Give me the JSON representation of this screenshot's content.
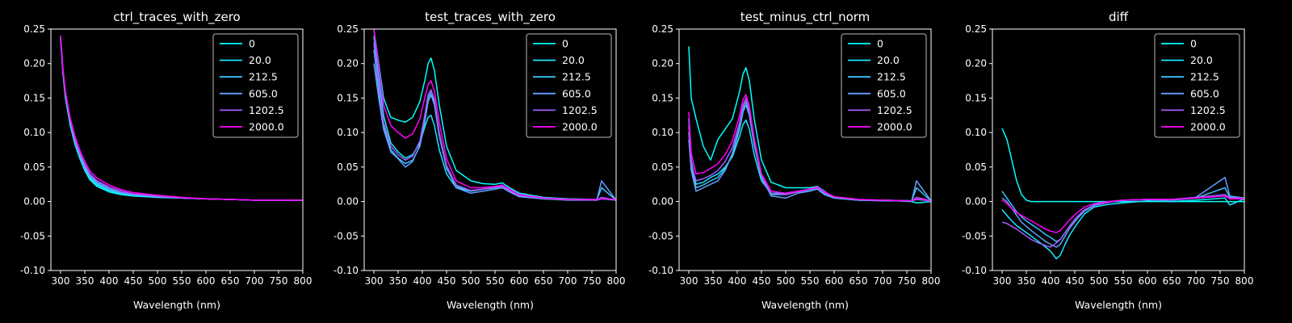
{
  "figure": {
    "background": "#000000",
    "foreground": "#ffffff"
  },
  "legend": {
    "entries": [
      "0",
      "20.0",
      "212.5",
      "605.0",
      "1202.5",
      "2000.0"
    ],
    "colors": [
      "#00ffff",
      "#17e8ff",
      "#3dc2ff",
      "#62a0ff",
      "#a35cff",
      "#ff00ff"
    ],
    "placement": "top-right"
  },
  "chart_data": [
    {
      "type": "line",
      "title": "ctrl_traces_with_zero",
      "xlabel": "Wavelength (nm)",
      "ylabel": "",
      "xlim": [
        280,
        800
      ],
      "ylim": [
        -0.1,
        0.25
      ],
      "xticks": [
        300,
        350,
        400,
        450,
        500,
        550,
        600,
        650,
        700,
        750,
        800
      ],
      "yticks": [
        "-0.10",
        "-0.05",
        "0.00",
        "0.05",
        "0.10",
        "0.15",
        "0.20",
        "0.25"
      ],
      "grid": false,
      "x": [
        300,
        305,
        310,
        320,
        330,
        340,
        350,
        360,
        375,
        400,
        425,
        450,
        500,
        550,
        600,
        650,
        700,
        750,
        800
      ],
      "series": [
        {
          "name": "0",
          "values": [
            0.235,
            0.185,
            0.15,
            0.11,
            0.082,
            0.062,
            0.045,
            0.032,
            0.022,
            0.014,
            0.01,
            0.008,
            0.006,
            0.005,
            0.004,
            0.003,
            0.002,
            0.002,
            0.002
          ]
        },
        {
          "name": "20.0",
          "values": [
            0.236,
            0.187,
            0.152,
            0.112,
            0.084,
            0.064,
            0.047,
            0.034,
            0.024,
            0.016,
            0.011,
            0.009,
            0.006,
            0.005,
            0.004,
            0.003,
            0.002,
            0.002,
            0.002
          ]
        },
        {
          "name": "212.5",
          "values": [
            0.237,
            0.188,
            0.153,
            0.114,
            0.086,
            0.066,
            0.049,
            0.036,
            0.026,
            0.017,
            0.012,
            0.01,
            0.007,
            0.005,
            0.004,
            0.003,
            0.002,
            0.002,
            0.002
          ]
        },
        {
          "name": "605.0",
          "values": [
            0.238,
            0.189,
            0.155,
            0.116,
            0.088,
            0.068,
            0.051,
            0.038,
            0.028,
            0.019,
            0.013,
            0.01,
            0.007,
            0.005,
            0.004,
            0.003,
            0.002,
            0.002,
            0.002
          ]
        },
        {
          "name": "1202.5",
          "values": [
            0.239,
            0.19,
            0.157,
            0.118,
            0.09,
            0.07,
            0.054,
            0.041,
            0.03,
            0.021,
            0.015,
            0.011,
            0.008,
            0.005,
            0.004,
            0.003,
            0.002,
            0.002,
            0.002
          ]
        },
        {
          "name": "2000.0",
          "values": [
            0.241,
            0.193,
            0.16,
            0.121,
            0.094,
            0.074,
            0.058,
            0.045,
            0.034,
            0.024,
            0.017,
            0.013,
            0.009,
            0.006,
            0.004,
            0.003,
            0.002,
            0.002,
            0.002
          ]
        }
      ]
    },
    {
      "type": "line",
      "title": "test_traces_with_zero",
      "xlabel": "Wavelength (nm)",
      "ylabel": "",
      "xlim": [
        280,
        800
      ],
      "ylim": [
        -0.1,
        0.25
      ],
      "xticks": [
        300,
        350,
        400,
        450,
        500,
        550,
        600,
        650,
        700,
        750,
        800
      ],
      "yticks": [
        "-0.10",
        "-0.05",
        "0.00",
        "0.05",
        "0.10",
        "0.15",
        "0.20",
        "0.25"
      ],
      "grid": false,
      "x": [
        300,
        310,
        320,
        335,
        350,
        365,
        380,
        395,
        405,
        412,
        418,
        425,
        435,
        450,
        470,
        500,
        525,
        550,
        565,
        580,
        600,
        650,
        700,
        760,
        770,
        800
      ],
      "series": [
        {
          "name": "0",
          "values": [
            0.25,
            0.2,
            0.15,
            0.122,
            0.118,
            0.115,
            0.122,
            0.145,
            0.175,
            0.2,
            0.208,
            0.19,
            0.14,
            0.08,
            0.045,
            0.03,
            0.026,
            0.025,
            0.027,
            0.02,
            0.012,
            0.006,
            0.004,
            0.003,
            0.004,
            0.003
          ]
        },
        {
          "name": "20.0",
          "values": [
            0.24,
            0.18,
            0.125,
            0.085,
            0.072,
            0.063,
            0.068,
            0.085,
            0.108,
            0.122,
            0.125,
            0.11,
            0.075,
            0.04,
            0.02,
            0.015,
            0.018,
            0.02,
            0.022,
            0.015,
            0.008,
            0.004,
            0.003,
            0.002,
            0.004,
            0.002
          ]
        },
        {
          "name": "212.5",
          "values": [
            0.22,
            0.16,
            0.11,
            0.075,
            0.063,
            0.055,
            0.06,
            0.08,
            0.115,
            0.145,
            0.155,
            0.14,
            0.095,
            0.048,
            0.022,
            0.015,
            0.018,
            0.02,
            0.022,
            0.015,
            0.008,
            0.004,
            0.003,
            0.002,
            0.02,
            0.002
          ]
        },
        {
          "name": "605.0",
          "values": [
            0.2,
            0.15,
            0.105,
            0.072,
            0.062,
            0.05,
            0.058,
            0.082,
            0.12,
            0.15,
            0.16,
            0.145,
            0.098,
            0.05,
            0.02,
            0.012,
            0.015,
            0.018,
            0.02,
            0.014,
            0.007,
            0.004,
            0.002,
            0.002,
            0.03,
            0.002
          ]
        },
        {
          "name": "1202.5",
          "values": [
            0.23,
            0.17,
            0.115,
            0.08,
            0.068,
            0.06,
            0.066,
            0.088,
            0.125,
            0.155,
            0.162,
            0.148,
            0.1,
            0.052,
            0.024,
            0.016,
            0.018,
            0.021,
            0.022,
            0.016,
            0.009,
            0.005,
            0.003,
            0.002,
            0.006,
            0.002
          ]
        },
        {
          "name": "2000.0",
          "values": [
            0.25,
            0.195,
            0.14,
            0.11,
            0.1,
            0.092,
            0.098,
            0.12,
            0.15,
            0.17,
            0.175,
            0.16,
            0.115,
            0.062,
            0.03,
            0.02,
            0.02,
            0.022,
            0.024,
            0.018,
            0.01,
            0.005,
            0.003,
            0.003,
            0.004,
            0.003
          ]
        }
      ]
    },
    {
      "type": "line",
      "title": "test_minus_ctrl_norm",
      "xlabel": "Wavelength (nm)",
      "ylabel": "",
      "xlim": [
        280,
        800
      ],
      "ylim": [
        -0.1,
        0.25
      ],
      "xticks": [
        300,
        350,
        400,
        450,
        500,
        550,
        600,
        650,
        700,
        750,
        800
      ],
      "yticks": [
        "-0.10",
        "-0.05",
        "0.00",
        "0.05",
        "0.10",
        "0.15",
        "0.20",
        "0.25"
      ],
      "grid": false,
      "x": [
        300,
        305,
        315,
        330,
        345,
        360,
        375,
        390,
        405,
        412,
        418,
        425,
        435,
        450,
        470,
        500,
        525,
        550,
        565,
        580,
        600,
        650,
        700,
        760,
        770,
        800
      ],
      "series": [
        {
          "name": "0",
          "values": [
            0.225,
            0.15,
            0.12,
            0.08,
            0.06,
            0.09,
            0.105,
            0.12,
            0.16,
            0.185,
            0.194,
            0.175,
            0.12,
            0.06,
            0.028,
            0.02,
            0.02,
            0.02,
            0.022,
            0.015,
            0.005,
            0.002,
            0.002,
            0.0,
            -0.002,
            0.0
          ]
        },
        {
          "name": "20.0",
          "values": [
            0.12,
            0.06,
            0.025,
            0.028,
            0.035,
            0.04,
            0.05,
            0.065,
            0.095,
            0.112,
            0.118,
            0.105,
            0.068,
            0.03,
            0.012,
            0.012,
            0.015,
            0.018,
            0.02,
            0.012,
            0.006,
            0.002,
            0.002,
            0.001,
            0.003,
            0.001
          ]
        },
        {
          "name": "212.5",
          "values": [
            0.1,
            0.05,
            0.02,
            0.024,
            0.03,
            0.035,
            0.048,
            0.068,
            0.105,
            0.13,
            0.14,
            0.125,
            0.082,
            0.035,
            0.01,
            0.01,
            0.014,
            0.017,
            0.019,
            0.012,
            0.006,
            0.002,
            0.002,
            0.001,
            0.02,
            0.001
          ]
        },
        {
          "name": "605.0",
          "values": [
            0.09,
            0.045,
            0.015,
            0.02,
            0.025,
            0.03,
            0.045,
            0.07,
            0.11,
            0.135,
            0.145,
            0.128,
            0.085,
            0.035,
            0.008,
            0.005,
            0.012,
            0.015,
            0.018,
            0.01,
            0.005,
            0.002,
            0.001,
            0.001,
            0.03,
            0.001
          ]
        },
        {
          "name": "1202.5",
          "values": [
            0.11,
            0.055,
            0.03,
            0.033,
            0.038,
            0.045,
            0.058,
            0.078,
            0.115,
            0.14,
            0.15,
            0.132,
            0.088,
            0.038,
            0.012,
            0.01,
            0.014,
            0.018,
            0.02,
            0.013,
            0.007,
            0.003,
            0.002,
            0.001,
            0.006,
            0.001
          ]
        },
        {
          "name": "2000.0",
          "values": [
            0.13,
            0.07,
            0.04,
            0.042,
            0.048,
            0.055,
            0.068,
            0.088,
            0.125,
            0.148,
            0.155,
            0.138,
            0.092,
            0.04,
            0.015,
            0.012,
            0.015,
            0.018,
            0.021,
            0.014,
            0.007,
            0.003,
            0.002,
            0.001,
            0.004,
            0.001
          ]
        }
      ]
    },
    {
      "type": "line",
      "title": "diff",
      "xlabel": "Wavelength (nm)",
      "ylabel": "",
      "xlim": [
        280,
        800
      ],
      "ylim": [
        -0.1,
        0.25
      ],
      "xticks": [
        300,
        350,
        400,
        450,
        500,
        550,
        600,
        650,
        700,
        750,
        800
      ],
      "yticks": [
        "-0.10",
        "-0.05",
        "0.00",
        "0.05",
        "0.10",
        "0.15",
        "0.20",
        "0.25"
      ],
      "grid": false,
      "x": [
        300,
        310,
        320,
        330,
        340,
        350,
        360,
        375,
        390,
        400,
        412,
        420,
        430,
        440,
        455,
        470,
        490,
        520,
        550,
        600,
        650,
        700,
        760,
        770,
        800
      ],
      "series": [
        {
          "name": "0",
          "values": [
            0.106,
            0.09,
            0.06,
            0.03,
            0.01,
            0.002,
            0.0,
            0.0,
            0.0,
            0.0,
            0.0,
            0.0,
            0.0,
            0.0,
            0.0,
            0.0,
            0.0,
            0.0,
            0.0,
            0.0,
            0.0,
            0.0,
            0.0,
            0.0,
            0.0
          ]
        },
        {
          "name": "20.0",
          "values": [
            -0.012,
            -0.02,
            -0.028,
            -0.035,
            -0.04,
            -0.045,
            -0.05,
            -0.058,
            -0.066,
            -0.072,
            -0.083,
            -0.078,
            -0.062,
            -0.048,
            -0.032,
            -0.018,
            -0.008,
            -0.004,
            -0.002,
            0.001,
            0.0,
            0.002,
            0.005,
            -0.005,
            0.004
          ]
        },
        {
          "name": "212.5",
          "values": [
            0.015,
            0.005,
            -0.005,
            -0.015,
            -0.022,
            -0.028,
            -0.033,
            -0.04,
            -0.048,
            -0.052,
            -0.058,
            -0.055,
            -0.045,
            -0.035,
            -0.022,
            -0.012,
            -0.005,
            0.0,
            0.002,
            0.003,
            0.002,
            0.005,
            0.02,
            0.006,
            0.005
          ]
        },
        {
          "name": "605.0",
          "values": [
            0.005,
            0.0,
            -0.01,
            -0.02,
            -0.03,
            -0.036,
            -0.042,
            -0.05,
            -0.058,
            -0.062,
            -0.066,
            -0.062,
            -0.05,
            -0.038,
            -0.025,
            -0.014,
            -0.006,
            -0.001,
            0.002,
            0.003,
            0.002,
            0.006,
            0.035,
            0.008,
            0.005
          ]
        },
        {
          "name": "1202.5",
          "values": [
            -0.03,
            -0.032,
            -0.036,
            -0.04,
            -0.045,
            -0.05,
            -0.055,
            -0.06,
            -0.064,
            -0.066,
            -0.06,
            -0.055,
            -0.045,
            -0.035,
            -0.022,
            -0.012,
            -0.006,
            -0.001,
            0.002,
            0.003,
            0.003,
            0.006,
            0.01,
            0.005,
            0.005
          ]
        },
        {
          "name": "2000.0",
          "values": [
            0.002,
            -0.003,
            -0.01,
            -0.016,
            -0.02,
            -0.024,
            -0.028,
            -0.034,
            -0.04,
            -0.043,
            -0.045,
            -0.042,
            -0.034,
            -0.026,
            -0.016,
            -0.008,
            -0.003,
            0.0,
            0.002,
            0.003,
            0.003,
            0.005,
            0.008,
            0.004,
            0.004
          ]
        }
      ]
    }
  ]
}
